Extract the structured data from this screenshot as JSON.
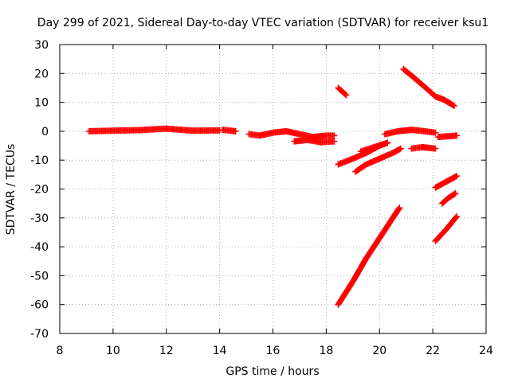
{
  "chart_data": {
    "type": "scatter",
    "title": "Day 299 of 2021, Sidereal Day-to-day VTEC variation (SDTVAR) for receiver ksu1",
    "xlabel": "GPS time / hours",
    "ylabel": "SDTVAR / TECUs",
    "xlim": [
      8,
      24
    ],
    "ylim": [
      -70,
      30
    ],
    "x_ticks": [
      8,
      10,
      12,
      14,
      16,
      18,
      20,
      22,
      24
    ],
    "x_tick_labels": [
      "8",
      "10",
      "12",
      "14",
      "16",
      "18",
      "20",
      "22",
      "24"
    ],
    "y_ticks": [
      -70,
      -60,
      -50,
      -40,
      -30,
      -20,
      -10,
      0,
      10,
      20,
      30
    ],
    "y_tick_labels": [
      "-70",
      "-60",
      "-50",
      "-40",
      "-30",
      "-20",
      "-10",
      "0",
      "10",
      "20",
      "30"
    ],
    "grid": true,
    "marker": "plus",
    "color": "#ff0000",
    "segments": [
      {
        "points": [
          [
            9.1,
            0
          ],
          [
            10.0,
            0.2
          ],
          [
            11.0,
            0.4
          ],
          [
            12.0,
            0.9
          ],
          [
            13.0,
            0.2
          ],
          [
            14.0,
            0.3
          ]
        ]
      },
      {
        "points": [
          [
            14.1,
            0.5
          ],
          [
            14.6,
            0
          ]
        ]
      },
      {
        "points": [
          [
            15.1,
            -1
          ],
          [
            15.5,
            -1.5
          ],
          [
            16.0,
            -0.5
          ],
          [
            16.5,
            0
          ],
          [
            17.0,
            -1
          ],
          [
            17.5,
            -2
          ],
          [
            18.0,
            -1.5
          ],
          [
            18.3,
            -1.5
          ]
        ]
      },
      {
        "points": [
          [
            16.8,
            -3.5
          ],
          [
            17.3,
            -3
          ],
          [
            17.8,
            -3.8
          ],
          [
            18.3,
            -3.5
          ]
        ]
      },
      {
        "points": [
          [
            18.45,
            15
          ],
          [
            18.75,
            12.5
          ]
        ]
      },
      {
        "points": [
          [
            18.45,
            -11.5
          ],
          [
            19.0,
            -9.5
          ],
          [
            19.5,
            -7.5
          ],
          [
            20.0,
            -5
          ],
          [
            20.3,
            -4
          ]
        ]
      },
      {
        "points": [
          [
            19.3,
            -7
          ],
          [
            19.8,
            -5.5
          ],
          [
            20.3,
            -4
          ]
        ]
      },
      {
        "points": [
          [
            19.1,
            -14
          ],
          [
            19.5,
            -11.5
          ],
          [
            20.0,
            -9.5
          ],
          [
            20.5,
            -7.5
          ],
          [
            20.8,
            -6
          ]
        ]
      },
      {
        "points": [
          [
            18.45,
            -60
          ],
          [
            19.0,
            -52
          ],
          [
            19.5,
            -44
          ],
          [
            20.0,
            -37
          ],
          [
            20.5,
            -30
          ],
          [
            20.75,
            -26.5
          ]
        ]
      },
      {
        "points": [
          [
            20.2,
            -1
          ],
          [
            20.7,
            0
          ],
          [
            21.2,
            0.5
          ],
          [
            21.7,
            0
          ],
          [
            22.1,
            -0.5
          ]
        ]
      },
      {
        "points": [
          [
            20.9,
            21.5
          ],
          [
            21.3,
            18.5
          ],
          [
            21.8,
            14.5
          ],
          [
            22.1,
            12
          ],
          [
            22.4,
            11
          ],
          [
            22.8,
            8.8
          ]
        ]
      },
      {
        "points": [
          [
            21.2,
            -6
          ],
          [
            21.6,
            -5.5
          ],
          [
            22.1,
            -6
          ]
        ]
      },
      {
        "points": [
          [
            22.2,
            -2
          ],
          [
            22.9,
            -1.5
          ]
        ]
      },
      {
        "points": [
          [
            22.1,
            -19.5
          ],
          [
            22.5,
            -17.5
          ],
          [
            22.9,
            -15.5
          ]
        ]
      },
      {
        "points": [
          [
            22.35,
            -25
          ],
          [
            22.6,
            -23
          ],
          [
            22.85,
            -21.5
          ]
        ]
      },
      {
        "points": [
          [
            22.1,
            -38
          ],
          [
            22.5,
            -34
          ],
          [
            22.9,
            -29.5
          ]
        ]
      }
    ]
  }
}
